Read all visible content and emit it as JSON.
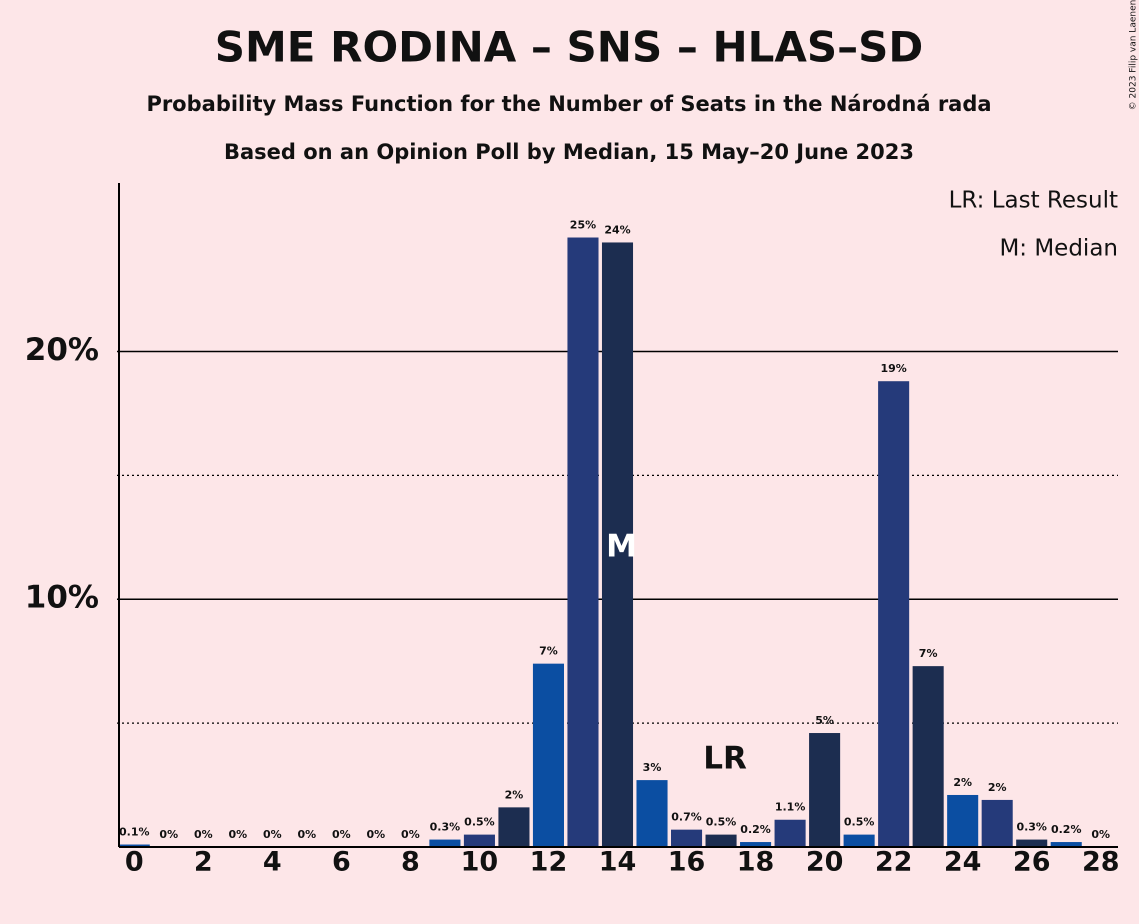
{
  "chart_data": {
    "type": "bar",
    "title": "SME RODINA – SNS – HLAS–SD",
    "subtitle": "Probability Mass Function for the Number of Seats in the Národná rada",
    "subtitle2": "Based on an Opinion Poll by Median, 15 May–20 June 2023",
    "copyright": "© 2023 Filip van Laenen",
    "legend": [
      "LR: Last Result",
      "M: Median"
    ],
    "annotations": [
      {
        "text": "M",
        "x": 14
      },
      {
        "text": "LR",
        "x": 17
      }
    ],
    "x": [
      0,
      1,
      2,
      3,
      4,
      5,
      6,
      7,
      8,
      9,
      10,
      11,
      12,
      13,
      14,
      15,
      16,
      17,
      18,
      19,
      20,
      21,
      22,
      23,
      24,
      25,
      26,
      27,
      28
    ],
    "values": [
      0.1,
      0,
      0,
      0,
      0,
      0,
      0,
      0,
      0,
      0.3,
      0.5,
      1.6,
      7.4,
      24.6,
      24.4,
      2.7,
      0.7,
      0.5,
      0.2,
      1.1,
      4.6,
      0.5,
      18.8,
      7.3,
      2.1,
      1.9,
      0.3,
      0.2,
      0
    ],
    "value_labels": [
      "0.1%",
      "0%",
      "0%",
      "0%",
      "0%",
      "0%",
      "0%",
      "0%",
      "0%",
      "0.3%",
      "0.5%",
      "2%",
      "7%",
      "25%",
      "24%",
      "3%",
      "0.7%",
      "0.5%",
      "0.2%",
      "1.1%",
      "5%",
      "0.5%",
      "19%",
      "7%",
      "2%",
      "2%",
      "0.3%",
      "0.2%",
      "0%"
    ],
    "colors": [
      "#0b4ea2",
      "#253a7a",
      "#1c2d50"
    ],
    "xlim": [
      -0.5,
      28.5
    ],
    "xticks": [
      0,
      2,
      4,
      6,
      8,
      10,
      12,
      14,
      16,
      18,
      20,
      22,
      24,
      26,
      28
    ],
    "ylim": [
      0,
      26.8
    ],
    "yticks": [
      {
        "value": 10,
        "label": "10%"
      },
      {
        "value": 20,
        "label": "20%"
      }
    ],
    "minor_yticks": [
      5,
      15
    ],
    "grid": true
  }
}
